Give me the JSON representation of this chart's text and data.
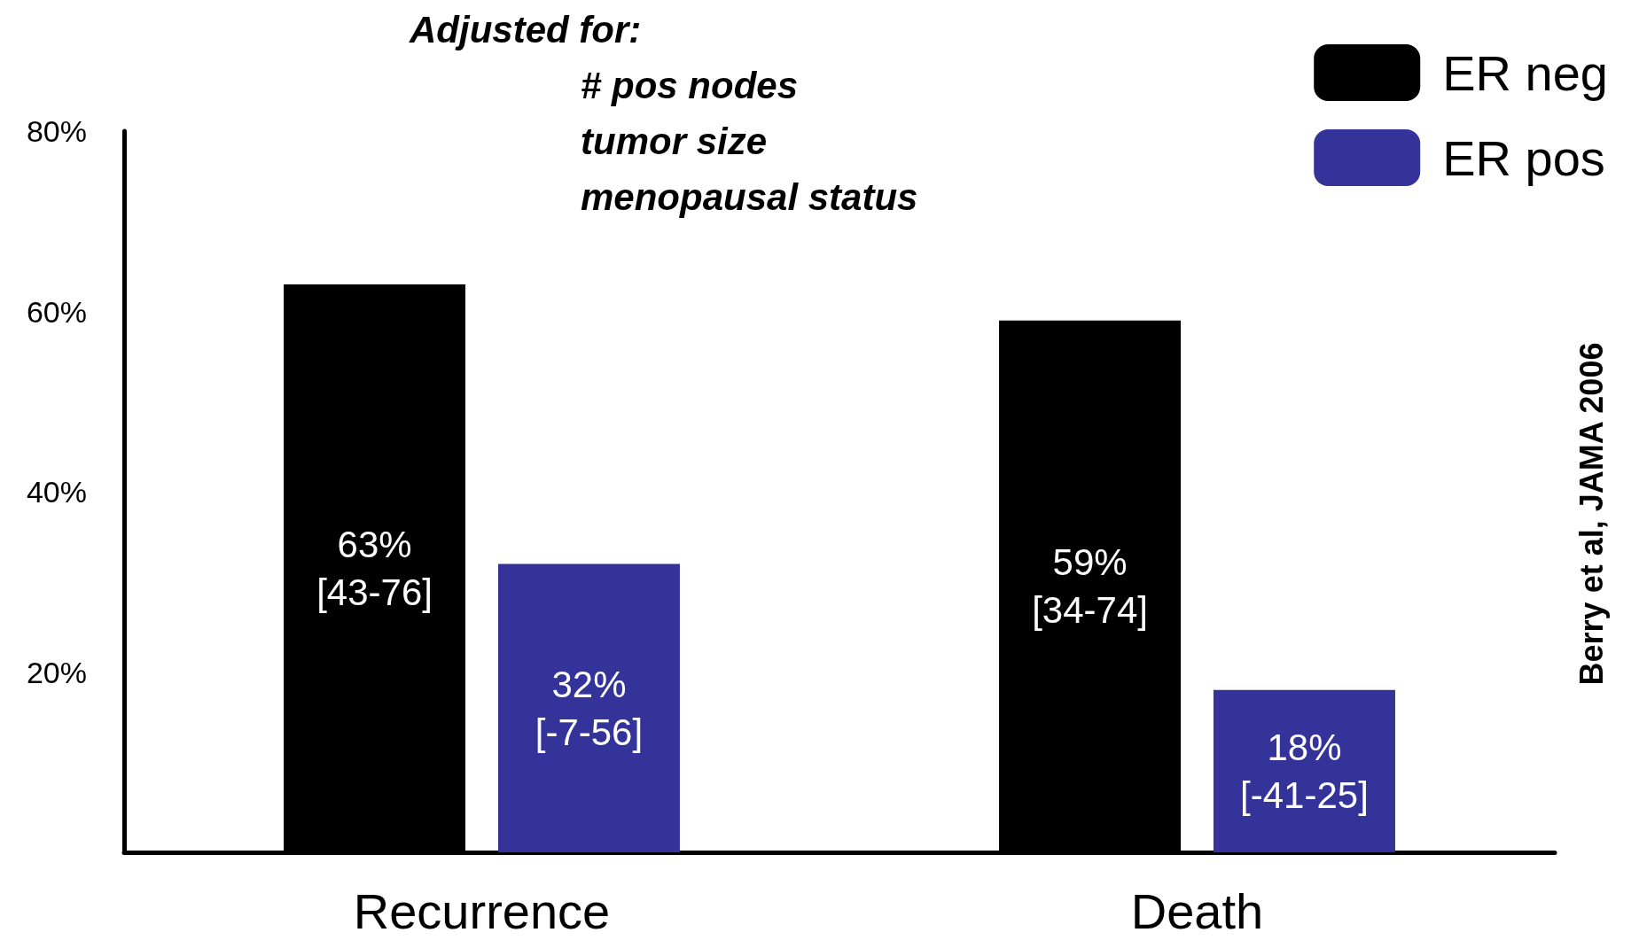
{
  "chart_data": {
    "type": "bar",
    "categories": [
      "Recurrence",
      "Death"
    ],
    "series": [
      {
        "name": "ER neg",
        "color": "#000000",
        "values": [
          63,
          59
        ],
        "value_labels": [
          "63%\n[43-76]",
          "59%\n[34-74]"
        ]
      },
      {
        "name": "ER pos",
        "color": "#333399",
        "values": [
          32,
          18
        ],
        "value_labels": [
          "32%\n[-7-56]",
          "18%\n[-41-25]"
        ]
      }
    ],
    "ylim": [
      0,
      80
    ],
    "yticks": [
      {
        "value": 20,
        "label": "20%"
      },
      {
        "value": 40,
        "label": "40%"
      },
      {
        "value": 60,
        "label": "60%"
      },
      {
        "value": 80,
        "label": "80%"
      }
    ],
    "grid": false,
    "legend": "top right",
    "annotations": [
      "Adjusted for:",
      "# pos nodes",
      "tumor size",
      "menopausal status",
      "Berry et al, JAMA 2006"
    ]
  }
}
